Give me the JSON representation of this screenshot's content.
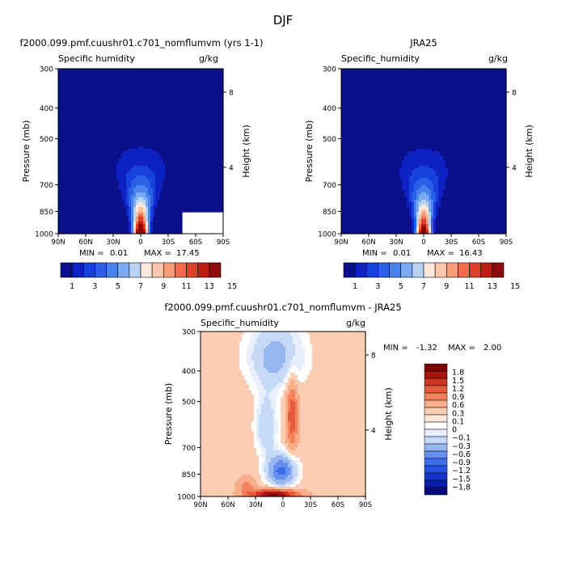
{
  "figure": {
    "title": "DJF"
  },
  "colors": {
    "abs_scale": [
      "#0a0f8a",
      "#0d21c4",
      "#1840dc",
      "#2a5fe8",
      "#4a82f0",
      "#7aaaf2",
      "#b8d2f6",
      "#fde6da",
      "#fdc6ac",
      "#fb9c78",
      "#f36b4b",
      "#de3f2a",
      "#bd1c14",
      "#8c0a0a"
    ],
    "diff_scale": [
      "#080c7a",
      "#0a1ca8",
      "#1234cc",
      "#2250e0",
      "#3a6fe8",
      "#6590ee",
      "#98b6f2",
      "#c6daf7",
      "#e6effb",
      "#ffffff",
      "#fde9db",
      "#fbceb4",
      "#f8ac88",
      "#f3825c",
      "#e85a3a",
      "#cf3222",
      "#a71510",
      "#7a0606"
    ]
  },
  "chart_data": [
    {
      "type": "heatmap",
      "title": "f2000.099.pmf.cuushr01.c701_nomflumvm (yrs 1-1)",
      "subtitle_left": "Specific humidity",
      "subtitle_right": "g/kg",
      "xlabel": "",
      "ylabel": "Pressure (mb)",
      "y2label": "Height (km)",
      "x_ticks": [
        "90N",
        "60N",
        "30N",
        "0",
        "30S",
        "60S",
        "90S"
      ],
      "y_ticks": [
        "300",
        "400",
        "500",
        "700",
        "850",
        "1000"
      ],
      "y2_ticks": [
        "8",
        "4"
      ],
      "stats": {
        "min_label": "MIN =",
        "min": "0.01",
        "max_label": "MAX =",
        "max": "17.45"
      },
      "levels": [
        1,
        2,
        3,
        4,
        5,
        6,
        7,
        8,
        9,
        10,
        11,
        12,
        13,
        14,
        15
      ],
      "colorbar_labels": [
        "1",
        "3",
        "5",
        "7",
        "9",
        "11",
        "13",
        "15"
      ],
      "peak": 17.45,
      "x_center_deg": 0,
      "masked_region": {
        "lat_from": -45,
        "lat_to": -90,
        "p_from": 860
      }
    },
    {
      "type": "heatmap",
      "title": "JRA25",
      "subtitle_left": "Specific_humidity",
      "subtitle_right": "g/kg",
      "xlabel": "",
      "ylabel": "Pressure (mb)",
      "y2label": "Height (km)",
      "x_ticks": [
        "90N",
        "60N",
        "30N",
        "0",
        "30S",
        "60S",
        "90S"
      ],
      "y_ticks": [
        "300",
        "400",
        "500",
        "700",
        "850",
        "1000"
      ],
      "y2_ticks": [
        "8",
        "4"
      ],
      "stats": {
        "min_label": "MIN =",
        "min": "0.01",
        "max_label": "MAX =",
        "max": "16.43"
      },
      "levels": [
        1,
        2,
        3,
        4,
        5,
        6,
        7,
        8,
        9,
        10,
        11,
        12,
        13,
        14,
        15
      ],
      "colorbar_labels": [
        "1",
        "3",
        "5",
        "7",
        "9",
        "11",
        "13",
        "15"
      ],
      "peak": 16.43,
      "x_center_deg": 0
    },
    {
      "type": "heatmap",
      "title": "f2000.099.pmf.cuushr01.c701_nomflumvm - JRA25",
      "subtitle_left": "Specific_humidity",
      "subtitle_right": "g/kg",
      "xlabel": "",
      "ylabel": "Pressure (mb)",
      "y2label": "Height (km)",
      "x_ticks": [
        "90N",
        "60N",
        "30N",
        "0",
        "30S",
        "60S",
        "90S"
      ],
      "y_ticks": [
        "300",
        "400",
        "500",
        "700",
        "850",
        "1000"
      ],
      "y2_ticks": [
        "8",
        "4"
      ],
      "stats": {
        "min_label": "MIN =",
        "min": "-1.32",
        "max_label": "MAX =",
        "max": "2.00"
      },
      "levels": [
        -1.8,
        -1.5,
        -1.2,
        -0.9,
        -0.6,
        -0.3,
        -0.1,
        0,
        0.1,
        0.3,
        0.6,
        0.9,
        1.2,
        1.5,
        1.8
      ],
      "colorbar_labels": [
        "1.8",
        "1.5",
        "1.2",
        "0.9",
        "0.6",
        "0.3",
        "0.1",
        "0",
        "-0.1",
        "-0.3",
        "-0.6",
        "-0.9",
        "-1.2",
        "-1.5",
        "-1.8"
      ]
    }
  ]
}
